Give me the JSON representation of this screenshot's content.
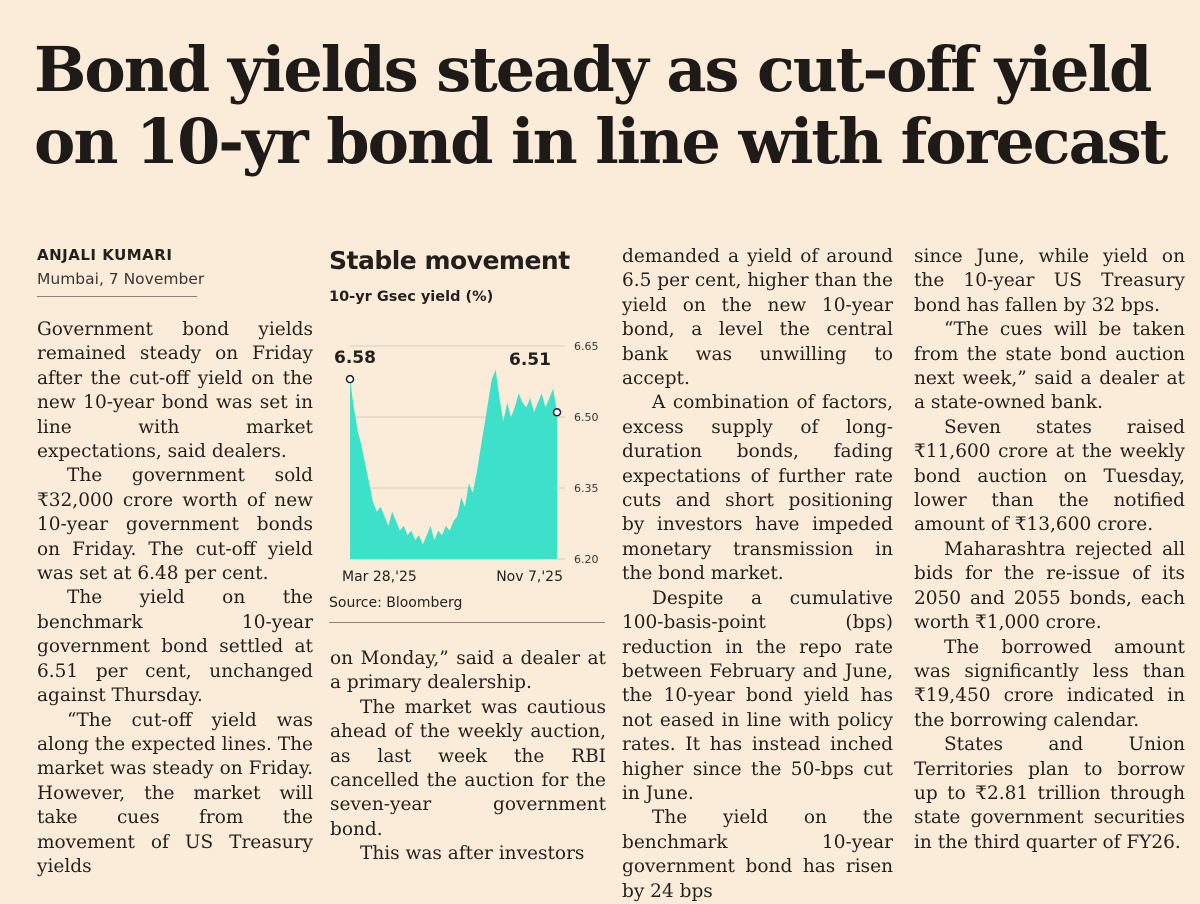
{
  "headline": {
    "line1": "Bond yields steady as cut-off yield",
    "line2": "on 10-yr bond in line with forecast"
  },
  "byline": {
    "author": "ANJALI KUMARI",
    "place_date": "Mumbai, 7 November"
  },
  "columns": {
    "col1": [
      "Government bond yields remained steady on Friday after the cut-off yield on the new 10-year bond was set in line with market expectations, said dealers.",
      "The government sold ₹32,000 crore worth of new 10-year government bonds on Friday. The cut-off yield was set at 6.48 per cent.",
      "The yield on the benchmark 10-year government bond settled at 6.51 per cent, unchanged against Thursday.",
      "“The cut-off yield was along the expected lines. The market was steady on Friday. However, the market will take cues from the movement of US Treasury yields"
    ],
    "col2": [
      "on Monday,” said a dealer at a primary dealership.",
      "The market was cautious ahead of the weekly auction, as last week the RBI cancelled the auction for the seven-year government bond.",
      "This was after investors"
    ],
    "col3": [
      "demanded a yield of around 6.5 per cent, higher than the yield on the new 10-year bond, a level the central bank was unwilling to accept.",
      "A combination of factors, excess supply of long-duration bonds, fading expectations of further rate cuts and short positioning by investors have impeded monetary transmission in the bond market.",
      "Despite a cumulative 100-basis-point (bps) reduction in the repo rate between February and June, the 10-year bond yield has not eased in line with policy rates. It has instead inched higher since the 50-bps cut in June.",
      "The yield on the benchmark 10-year government bond has risen by 24 bps"
    ],
    "col4": [
      "since June, while yield on the 10-year US Treasury bond has fallen by 32 bps.",
      "“The cues will be taken from the state bond auction next week,” said a dealer at a state-owned bank.",
      "Seven states raised ₹11,600 crore at the weekly bond auction on Tuesday, lower than the notified amount of ₹13,600 crore.",
      "Maharashtra rejected all bids for the re-issue of its 2050 and 2055 bonds, each worth ₹1,000 crore.",
      "The borrowed amount was significantly less than ₹19,450 crore indicated in the borrowing calendar.",
      "States and Union Territories plan to borrow up to ₹2.81 trillion through state government securities in the third quarter of FY26."
    ]
  },
  "chart": {
    "title": "Stable movement",
    "subtitle": "10-yr Gsec yield (%)",
    "source": "Source: Bloomberg",
    "fill_color": "#3de0c8",
    "annotation_start": "6.58",
    "annotation_end": "6.51"
  },
  "chart_data": {
    "type": "area",
    "title": "Stable movement",
    "ylabel": "10-yr Gsec yield (%)",
    "ylim": [
      6.2,
      6.65
    ],
    "yticks": [
      6.2,
      6.35,
      6.5,
      6.65
    ],
    "ytick_labels": [
      "6.20",
      "6.35",
      "6.50",
      "6.65"
    ],
    "xtick_labels": [
      "Mar 28,'25",
      "Nov 7,'25"
    ],
    "values": [
      6.58,
      6.52,
      6.47,
      6.44,
      6.4,
      6.36,
      6.32,
      6.3,
      6.31,
      6.29,
      6.27,
      6.3,
      6.28,
      6.26,
      6.27,
      6.25,
      6.26,
      6.24,
      6.25,
      6.23,
      6.25,
      6.27,
      6.24,
      6.26,
      6.25,
      6.27,
      6.26,
      6.28,
      6.29,
      6.33,
      6.31,
      6.36,
      6.34,
      6.38,
      6.43,
      6.48,
      6.53,
      6.58,
      6.6,
      6.54,
      6.49,
      6.53,
      6.5,
      6.52,
      6.55,
      6.53,
      6.52,
      6.54,
      6.51,
      6.53,
      6.55,
      6.52,
      6.54,
      6.56,
      6.51
    ],
    "source": "Source: Bloomberg"
  }
}
